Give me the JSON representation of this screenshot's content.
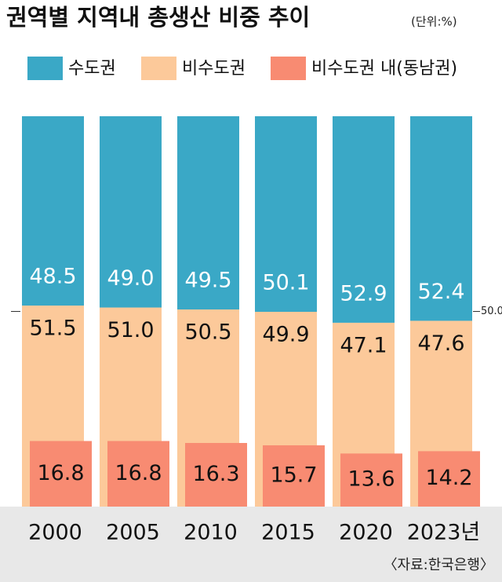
{
  "chart_data": {
    "type": "bar",
    "title": "권역별 지역내 총생산 비중 추이",
    "subtitle": "(단위:%)",
    "source": "〈자료:한국은행〉",
    "categories": [
      "2000",
      "2005",
      "2010",
      "2015",
      "2020",
      "2023년"
    ],
    "series": [
      {
        "name": "수도권",
        "color": "#3aa8c6",
        "values": [
          48.5,
          49.0,
          49.5,
          50.1,
          52.9,
          52.4
        ],
        "value_labels": [
          "48.5",
          "49.0",
          "49.5",
          "50.1",
          "52.9",
          "52.4"
        ]
      },
      {
        "name": "비수도권",
        "color": "#fcc99a",
        "values": [
          51.5,
          51.0,
          50.5,
          49.9,
          47.1,
          47.6
        ],
        "value_labels": [
          "51.5",
          "51.0",
          "50.5",
          "49.9",
          "47.1",
          "47.6"
        ]
      },
      {
        "name": "비수도권 내(동남권)",
        "color": "#f88b72",
        "values": [
          16.8,
          16.8,
          16.3,
          15.7,
          13.6,
          14.2
        ],
        "value_labels": [
          "16.8",
          "16.8",
          "16.3",
          "15.7",
          "13.6",
          "14.2"
        ]
      }
    ],
    "ylim": [
      0,
      100
    ],
    "yticks": [
      {
        "value": 50,
        "label": "50.0"
      }
    ]
  }
}
